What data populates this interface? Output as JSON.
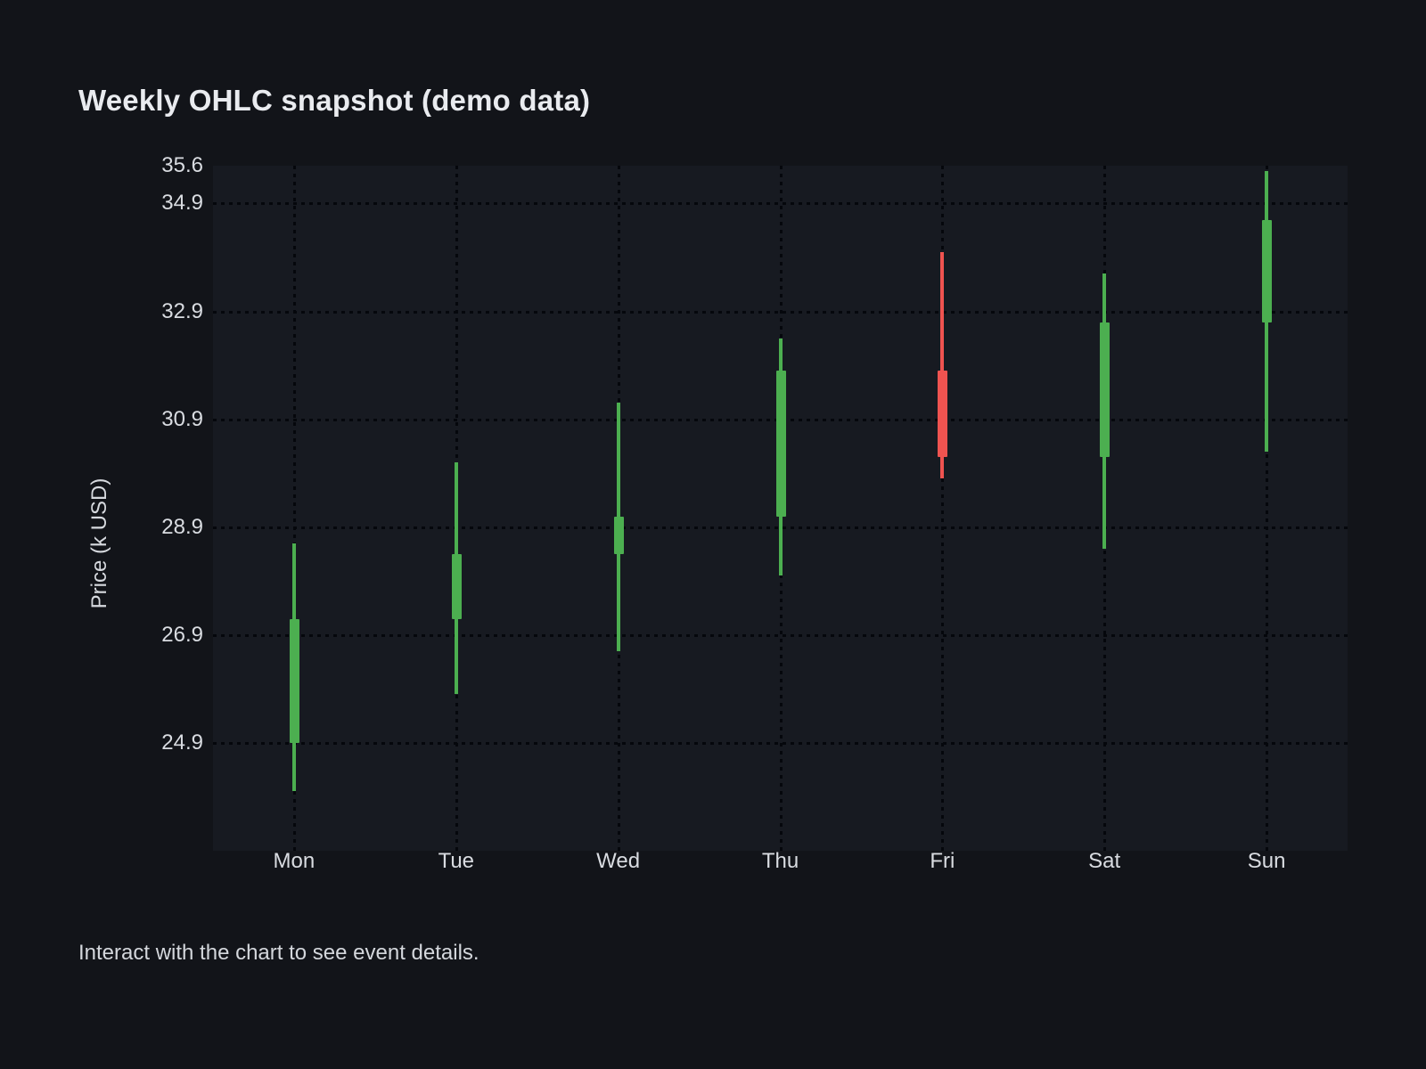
{
  "chart_data": {
    "type": "candlestick",
    "title": "Weekly OHLC snapshot (demo data)",
    "ylabel": "Price (k USD)",
    "footer_hint": "Interact with the chart to see event details.",
    "categories": [
      "Mon",
      "Tue",
      "Wed",
      "Thu",
      "Fri",
      "Sat",
      "Sun"
    ],
    "series": [
      {
        "day": "Mon",
        "open": 24.9,
        "high": 28.6,
        "low": 24.0,
        "close": 27.2
      },
      {
        "day": "Tue",
        "open": 27.2,
        "high": 30.1,
        "low": 25.8,
        "close": 28.4
      },
      {
        "day": "Wed",
        "open": 28.4,
        "high": 31.2,
        "low": 26.6,
        "close": 29.1
      },
      {
        "day": "Thu",
        "open": 29.1,
        "high": 32.4,
        "low": 28.0,
        "close": 31.8
      },
      {
        "day": "Fri",
        "open": 31.8,
        "high": 34.0,
        "low": 29.8,
        "close": 30.2
      },
      {
        "day": "Sat",
        "open": 30.2,
        "high": 33.6,
        "low": 28.5,
        "close": 32.7
      },
      {
        "day": "Sun",
        "open": 32.7,
        "high": 35.5,
        "low": 30.3,
        "close": 34.6
      }
    ],
    "ytick_labels": [
      "35.6",
      "34.9",
      "32.9",
      "30.9",
      "28.9",
      "26.9",
      "24.9"
    ],
    "ytick_values": [
      35.6,
      34.9,
      32.9,
      30.9,
      28.9,
      26.9,
      24.9
    ],
    "ylim": [
      22.9,
      35.6
    ],
    "grid": "dotted",
    "legend": "none",
    "colors": {
      "up": "#4caf50",
      "down": "#ef5350",
      "page_background": "#121419",
      "plot_background": "#171a21",
      "grid_dots": "#05070c",
      "text": "#d9dce1",
      "title_text": "#e9ebef"
    }
  }
}
